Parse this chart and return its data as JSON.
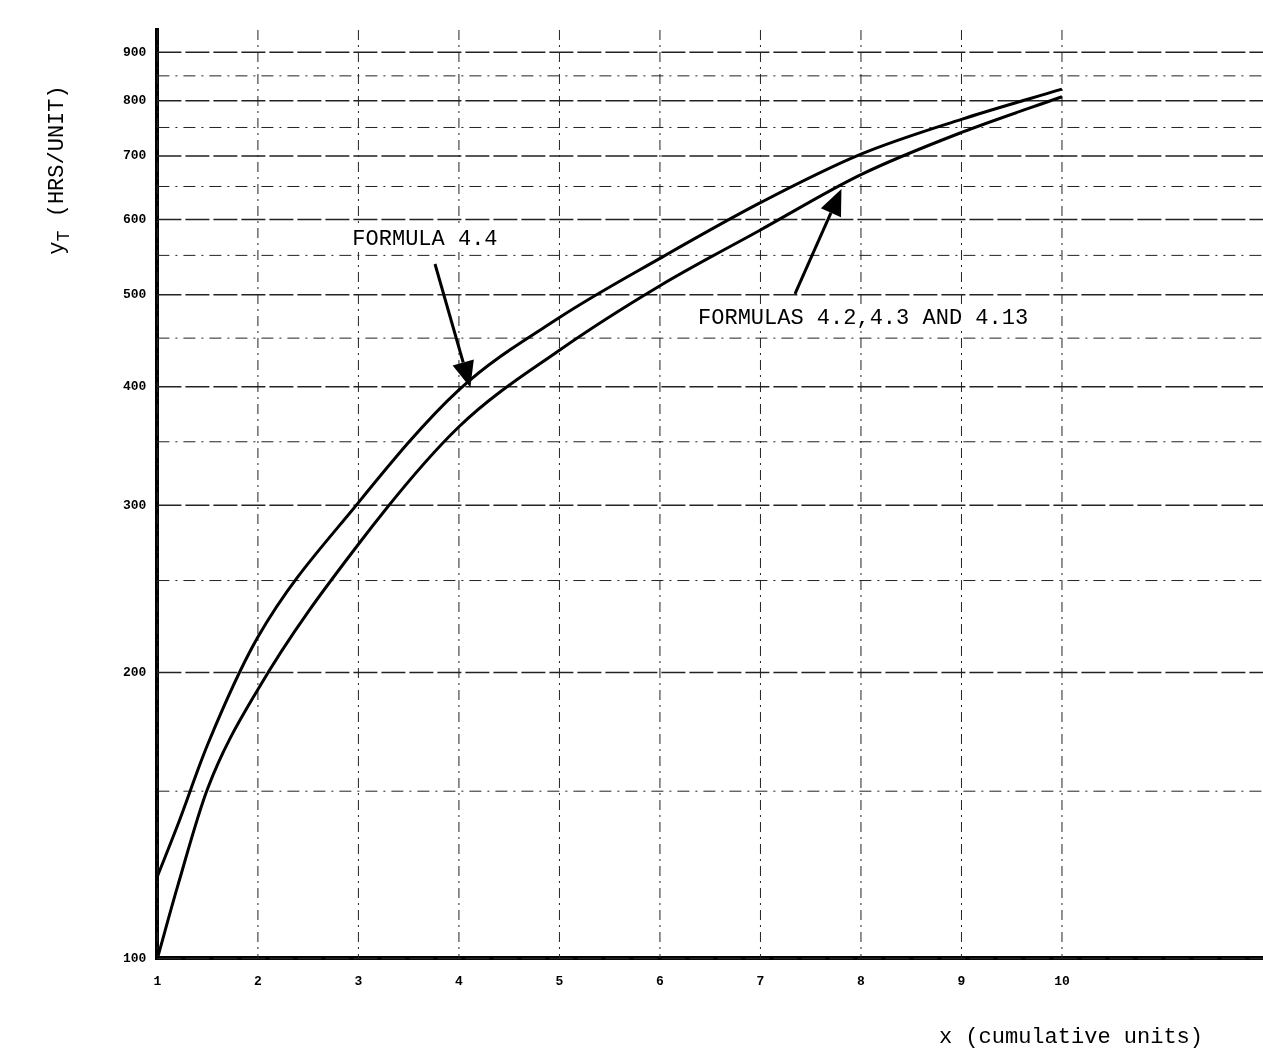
{
  "chart_data": {
    "type": "line",
    "xlabel": "x (cumulative units)",
    "ylabel": "y$_{T}$ (HRS/UNIT)",
    "x": [
      1,
      1.2,
      1.5,
      2,
      3,
      4,
      5,
      6,
      7,
      8,
      9,
      10
    ],
    "series": [
      {
        "color": "#000000",
        "values": [
          122,
          138,
          168,
          218,
          302,
          397,
          473,
          546,
          625,
          703,
          765,
          823
        ]
      },
      {
        "color": "#000000",
        "values": [
          100,
          119,
          151,
          192,
          273,
          363,
          437,
          511,
          585,
          669,
          741,
          808
        ]
      }
    ],
    "log": "y",
    "xlim": [
      1,
      12
    ],
    "ylim": [
      100,
      950
    ],
    "xticks": [
      1,
      2,
      3,
      4,
      5,
      6,
      7,
      8,
      9,
      10
    ],
    "yticks": [
      100,
      {
        "value": 150,
        "label": null
      },
      200,
      {
        "value": 250,
        "label": null
      },
      300,
      {
        "value": 350,
        "label": null
      },
      400,
      {
        "value": 450,
        "label": null
      },
      500,
      {
        "value": 550,
        "label": null
      },
      600,
      {
        "value": 650,
        "label": null
      },
      700,
      {
        "value": 750,
        "label": null
      },
      800,
      {
        "value": 850,
        "label": null
      },
      900
    ],
    "grid": true,
    "marker": "none",
    "line_style": "solid",
    "annotations": [
      "FORMULA 4.4",
      "FORMULAS 4.2,4.3 AND 4.13"
    ]
  }
}
